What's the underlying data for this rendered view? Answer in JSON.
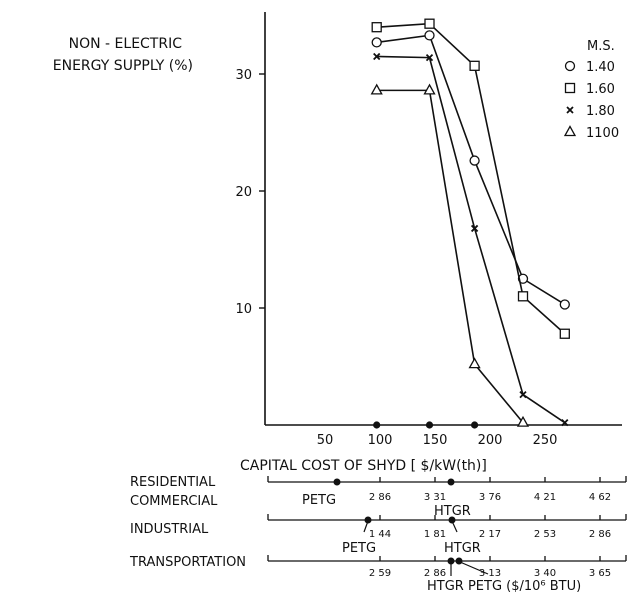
{
  "chart_data": {
    "type": "line",
    "ylabel_lines": [
      "NON - ELECTRIC",
      "ENERGY SUPPLY (%)"
    ],
    "xlabel": "CAPITAL COST OF SHYD [ $/kW(th)]",
    "legend_title": "M.S.",
    "legend_placement": "top-right",
    "x_ticks": [
      50,
      100,
      150,
      200,
      250
    ],
    "y_ticks": [
      10,
      20,
      30
    ],
    "series": [
      {
        "name": "1.40",
        "marker": "circle",
        "x": [
          97,
          145,
          186,
          230,
          268
        ],
        "y": [
          32.7,
          33.3,
          22.6,
          12.5,
          10.3
        ]
      },
      {
        "name": "1.60",
        "marker": "square",
        "x": [
          97,
          145,
          186,
          230,
          268
        ],
        "y": [
          34.0,
          34.3,
          30.7,
          11.0,
          7.8
        ]
      },
      {
        "name": "1.80",
        "marker": "cross",
        "x": [
          97,
          145,
          186,
          230,
          268
        ],
        "y": [
          31.5,
          31.4,
          16.8,
          2.6,
          0.2
        ]
      },
      {
        "name": "1100",
        "marker": "triangle",
        "x": [
          97,
          145,
          186,
          230
        ],
        "y": [
          28.6,
          28.6,
          5.2,
          0.2
        ]
      }
    ],
    "zero_dots_x": [
      97,
      145,
      186
    ]
  },
  "scales": [
    {
      "label_lines": [
        "RESIDENTIAL",
        "COMMERCIAL"
      ],
      "ticks": [
        "2 86",
        "3 31",
        "3 76",
        "4 21",
        "4 62"
      ],
      "petg_label": "PETG",
      "htgr_label": "HTGR"
    },
    {
      "label_lines": [
        "INDUSTRIAL"
      ],
      "ticks": [
        "1 44",
        "1 81",
        "2 17",
        "2 53",
        "2 86"
      ],
      "petg_label": "PETG",
      "htgr_label": "HTGR"
    },
    {
      "label_lines": [
        "TRANSPORTATION"
      ],
      "ticks": [
        "2 59",
        "2 86",
        "3 13",
        "3 40",
        "3 65"
      ],
      "bottom_text": "HTGR  PETG  ($/10⁶ BTU)"
    }
  ]
}
